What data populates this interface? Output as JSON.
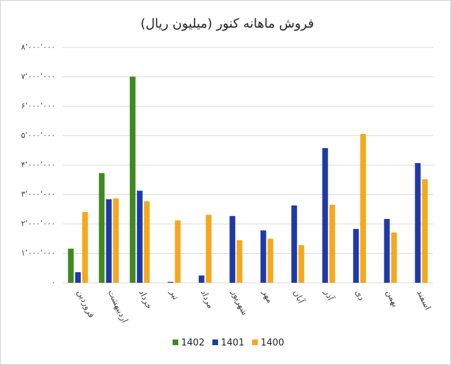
{
  "chart_data": {
    "type": "bar",
    "title": "فروش ماهانه کنور (میلیون ریال)",
    "categories": [
      "فروردین",
      "اردیبهشت",
      "خرداد",
      "تیر",
      "مرداد",
      "شهریور",
      "مهر",
      "آبان",
      "آذر",
      "دی",
      "بهمن",
      "اسفند"
    ],
    "series": [
      {
        "name": "1402",
        "color": "#3e8a1f",
        "values": [
          1160000,
          3730000,
          7010000,
          null,
          null,
          null,
          null,
          null,
          null,
          null,
          null,
          null
        ]
      },
      {
        "name": "1401",
        "color": "#1f3aa6",
        "values": [
          360000,
          2840000,
          3130000,
          30000,
          250000,
          2270000,
          1780000,
          2630000,
          4580000,
          1830000,
          2170000,
          4070000
        ]
      },
      {
        "name": "1400",
        "color": "#f5a81c",
        "values": [
          2410000,
          2870000,
          2770000,
          2120000,
          2310000,
          1450000,
          1500000,
          1280000,
          2650000,
          5060000,
          1710000,
          3520000
        ]
      }
    ],
    "ylim": [
      0,
      8000000
    ],
    "yticks": [
      {
        "value": 0,
        "label": "۰"
      },
      {
        "value": 1000000,
        "label": "۱٬۰۰۰٬۰۰۰"
      },
      {
        "value": 2000000,
        "label": "۲٬۰۰۰٬۰۰۰"
      },
      {
        "value": 3000000,
        "label": "۳٬۰۰۰٬۰۰۰"
      },
      {
        "value": 4000000,
        "label": "۴٬۰۰۰٬۰۰۰"
      },
      {
        "value": 5000000,
        "label": "۵٬۰۰۰٬۰۰۰"
      },
      {
        "value": 6000000,
        "label": "۶٬۰۰۰٬۰۰۰"
      },
      {
        "value": 7000000,
        "label": "۷٬۰۰۰٬۰۰۰"
      },
      {
        "value": 8000000,
        "label": "۸٬۰۰۰٬۰۰۰"
      }
    ],
    "grid": true
  }
}
